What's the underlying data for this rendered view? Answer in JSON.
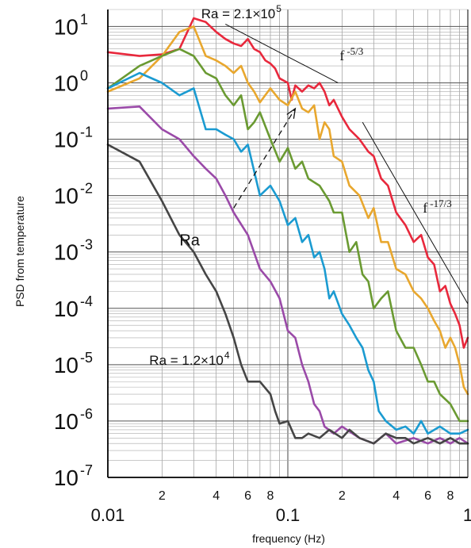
{
  "chart_data": {
    "type": "line",
    "xlabel": "frequency (Hz)",
    "ylabel": "PSD from temperature",
    "xscale": "log",
    "yscale": "log",
    "xlim": [
      0.01,
      1
    ],
    "ylim": [
      1e-07,
      20
    ],
    "grid": true,
    "x_major_ticks": [
      {
        "value": 0.01,
        "label": "0.01"
      },
      {
        "value": 0.1,
        "label": "0.1"
      },
      {
        "value": 1,
        "label": "1"
      }
    ],
    "x_minor_ticks": [
      {
        "value": 0.02,
        "label": "2"
      },
      {
        "value": 0.04,
        "label": "4"
      },
      {
        "value": 0.06,
        "label": "6"
      },
      {
        "value": 0.08,
        "label": "8"
      },
      {
        "value": 0.2,
        "label": "2"
      },
      {
        "value": 0.4,
        "label": "4"
      },
      {
        "value": 0.6,
        "label": "6"
      },
      {
        "value": 0.8,
        "label": "8"
      }
    ],
    "y_ticks": [
      {
        "value": 10,
        "base": "10",
        "exp": "1"
      },
      {
        "value": 1,
        "base": "10",
        "exp": "0"
      },
      {
        "value": 0.1,
        "base": "10",
        "exp": "-1"
      },
      {
        "value": 0.01,
        "base": "10",
        "exp": "-2"
      },
      {
        "value": 0.001,
        "base": "10",
        "exp": "-3"
      },
      {
        "value": 0.0001,
        "base": "10",
        "exp": "-4"
      },
      {
        "value": 1e-05,
        "base": "10",
        "exp": "-5"
      },
      {
        "value": 1e-06,
        "base": "10",
        "exp": "-6"
      },
      {
        "value": 1e-07,
        "base": "10",
        "exp": "-7"
      }
    ],
    "series": [
      {
        "color": "#e8283c",
        "points": [
          [
            0.01,
            3.5
          ],
          [
            0.015,
            3.0
          ],
          [
            0.02,
            3.2
          ],
          [
            0.025,
            4.0
          ],
          [
            0.03,
            14
          ],
          [
            0.035,
            12
          ],
          [
            0.04,
            8
          ],
          [
            0.045,
            6
          ],
          [
            0.05,
            5
          ],
          [
            0.055,
            4.5
          ],
          [
            0.06,
            6
          ],
          [
            0.065,
            4
          ],
          [
            0.07,
            3.5
          ],
          [
            0.075,
            2.5
          ],
          [
            0.08,
            2.2
          ],
          [
            0.085,
            1.8
          ],
          [
            0.09,
            1.2
          ],
          [
            0.1,
            1.0
          ],
          [
            0.105,
            0.5
          ],
          [
            0.11,
            0.9
          ],
          [
            0.12,
            0.7
          ],
          [
            0.13,
            0.9
          ],
          [
            0.14,
            0.8
          ],
          [
            0.15,
            1.0
          ],
          [
            0.16,
            0.7
          ],
          [
            0.17,
            0.4
          ],
          [
            0.18,
            0.5
          ],
          [
            0.2,
            0.25
          ],
          [
            0.22,
            0.15
          ],
          [
            0.25,
            0.1
          ],
          [
            0.28,
            0.06
          ],
          [
            0.3,
            0.05
          ],
          [
            0.33,
            0.02
          ],
          [
            0.36,
            0.015
          ],
          [
            0.4,
            0.005
          ],
          [
            0.45,
            0.003
          ],
          [
            0.5,
            0.0015
          ],
          [
            0.55,
            0.002
          ],
          [
            0.6,
            0.0008
          ],
          [
            0.65,
            0.0006
          ],
          [
            0.7,
            0.0002
          ],
          [
            0.75,
            0.00025
          ],
          [
            0.8,
            0.00012
          ],
          [
            0.85,
            8e-05
          ],
          [
            0.9,
            5e-05
          ],
          [
            0.95,
            2e-05
          ],
          [
            1.0,
            3e-05
          ]
        ]
      },
      {
        "color": "#e8a72e",
        "points": [
          [
            0.01,
            0.7
          ],
          [
            0.015,
            1.2
          ],
          [
            0.02,
            3.0
          ],
          [
            0.025,
            8
          ],
          [
            0.03,
            10
          ],
          [
            0.035,
            3.0
          ],
          [
            0.04,
            2.5
          ],
          [
            0.045,
            2.0
          ],
          [
            0.05,
            1.5
          ],
          [
            0.055,
            2.0
          ],
          [
            0.06,
            1.0
          ],
          [
            0.065,
            0.7
          ],
          [
            0.07,
            0.45
          ],
          [
            0.08,
            0.8
          ],
          [
            0.09,
            0.5
          ],
          [
            0.1,
            0.4
          ],
          [
            0.11,
            0.7
          ],
          [
            0.12,
            0.35
          ],
          [
            0.13,
            0.3
          ],
          [
            0.14,
            0.4
          ],
          [
            0.15,
            0.1
          ],
          [
            0.16,
            0.2
          ],
          [
            0.17,
            0.15
          ],
          [
            0.18,
            0.05
          ],
          [
            0.2,
            0.04
          ],
          [
            0.22,
            0.015
          ],
          [
            0.25,
            0.01
          ],
          [
            0.28,
            0.004
          ],
          [
            0.3,
            0.006
          ],
          [
            0.33,
            0.0015
          ],
          [
            0.36,
            0.0015
          ],
          [
            0.4,
            0.0005
          ],
          [
            0.45,
            0.0004
          ],
          [
            0.5,
            0.0002
          ],
          [
            0.55,
            0.00015
          ],
          [
            0.6,
            0.0001
          ],
          [
            0.65,
            6e-05
          ],
          [
            0.7,
            4e-05
          ],
          [
            0.75,
            2e-05
          ],
          [
            0.8,
            3e-05
          ],
          [
            0.85,
            2e-05
          ],
          [
            0.9,
            1e-05
          ],
          [
            0.95,
            4e-06
          ],
          [
            1.0,
            3e-06
          ]
        ]
      },
      {
        "color": "#6a9a32",
        "points": [
          [
            0.01,
            0.8
          ],
          [
            0.015,
            2.0
          ],
          [
            0.02,
            3.0
          ],
          [
            0.025,
            4.0
          ],
          [
            0.03,
            3.0
          ],
          [
            0.035,
            1.5
          ],
          [
            0.04,
            1.2
          ],
          [
            0.045,
            0.6
          ],
          [
            0.05,
            0.4
          ],
          [
            0.055,
            0.6
          ],
          [
            0.06,
            0.15
          ],
          [
            0.065,
            0.2
          ],
          [
            0.07,
            0.3
          ],
          [
            0.08,
            0.1
          ],
          [
            0.09,
            0.04
          ],
          [
            0.1,
            0.07
          ],
          [
            0.11,
            0.03
          ],
          [
            0.12,
            0.04
          ],
          [
            0.13,
            0.02
          ],
          [
            0.15,
            0.015
          ],
          [
            0.17,
            0.008
          ],
          [
            0.18,
            0.005
          ],
          [
            0.2,
            0.005
          ],
          [
            0.22,
            0.001
          ],
          [
            0.24,
            0.0015
          ],
          [
            0.26,
            0.0004
          ],
          [
            0.28,
            0.0003
          ],
          [
            0.3,
            0.0001
          ],
          [
            0.33,
            0.00015
          ],
          [
            0.36,
            0.0002
          ],
          [
            0.4,
            4e-05
          ],
          [
            0.45,
            2e-05
          ],
          [
            0.5,
            2e-05
          ],
          [
            0.55,
            1e-05
          ],
          [
            0.6,
            5e-06
          ],
          [
            0.65,
            5e-06
          ],
          [
            0.7,
            3e-06
          ],
          [
            0.8,
            2e-06
          ],
          [
            0.9,
            1e-06
          ],
          [
            1.0,
            1e-06
          ]
        ]
      },
      {
        "color": "#1b9bd1",
        "points": [
          [
            0.01,
            0.8
          ],
          [
            0.015,
            1.5
          ],
          [
            0.02,
            1.0
          ],
          [
            0.025,
            0.6
          ],
          [
            0.03,
            0.8
          ],
          [
            0.035,
            0.15
          ],
          [
            0.04,
            0.15
          ],
          [
            0.045,
            0.12
          ],
          [
            0.05,
            0.1
          ],
          [
            0.055,
            0.06
          ],
          [
            0.06,
            0.08
          ],
          [
            0.07,
            0.01
          ],
          [
            0.08,
            0.015
          ],
          [
            0.09,
            0.008
          ],
          [
            0.1,
            0.003
          ],
          [
            0.11,
            0.004
          ],
          [
            0.12,
            0.0015
          ],
          [
            0.13,
            0.002
          ],
          [
            0.14,
            0.0008
          ],
          [
            0.15,
            0.001
          ],
          [
            0.16,
            0.0005
          ],
          [
            0.17,
            0.00015
          ],
          [
            0.18,
            0.0002
          ],
          [
            0.2,
            8e-05
          ],
          [
            0.22,
            5e-05
          ],
          [
            0.24,
            3e-05
          ],
          [
            0.26,
            2e-05
          ],
          [
            0.28,
            8e-06
          ],
          [
            0.3,
            5e-06
          ],
          [
            0.32,
            1.5e-06
          ],
          [
            0.35,
            1e-06
          ],
          [
            0.4,
            7e-07
          ],
          [
            0.45,
            8e-07
          ],
          [
            0.5,
            6e-07
          ],
          [
            0.55,
            1e-06
          ],
          [
            0.6,
            6e-07
          ],
          [
            0.7,
            8e-07
          ],
          [
            0.8,
            6e-07
          ],
          [
            0.9,
            6e-07
          ],
          [
            1.0,
            7e-07
          ]
        ]
      },
      {
        "color": "#9a4aa8",
        "points": [
          [
            0.01,
            0.35
          ],
          [
            0.015,
            0.38
          ],
          [
            0.02,
            0.15
          ],
          [
            0.025,
            0.1
          ],
          [
            0.03,
            0.05
          ],
          [
            0.035,
            0.03
          ],
          [
            0.04,
            0.02
          ],
          [
            0.045,
            0.01
          ],
          [
            0.05,
            0.005
          ],
          [
            0.06,
            0.002
          ],
          [
            0.07,
            0.0005
          ],
          [
            0.08,
            0.0003
          ],
          [
            0.09,
            0.00015
          ],
          [
            0.1,
            4e-05
          ],
          [
            0.11,
            3e-05
          ],
          [
            0.12,
            1e-05
          ],
          [
            0.13,
            5e-06
          ],
          [
            0.14,
            2e-06
          ],
          [
            0.15,
            1.5e-06
          ],
          [
            0.16,
            8e-07
          ],
          [
            0.18,
            6e-07
          ],
          [
            0.2,
            8e-07
          ],
          [
            0.25,
            5e-07
          ],
          [
            0.3,
            4e-07
          ],
          [
            0.35,
            6e-07
          ],
          [
            0.4,
            4e-07
          ],
          [
            0.5,
            5e-07
          ],
          [
            0.6,
            4e-07
          ],
          [
            0.7,
            5e-07
          ],
          [
            0.8,
            4e-07
          ],
          [
            0.9,
            5e-07
          ],
          [
            1.0,
            4e-07
          ]
        ]
      },
      {
        "color": "#454545",
        "points": [
          [
            0.01,
            0.08
          ],
          [
            0.015,
            0.04
          ],
          [
            0.02,
            0.008
          ],
          [
            0.025,
            0.002
          ],
          [
            0.03,
            0.001
          ],
          [
            0.035,
            0.0004
          ],
          [
            0.04,
            0.0002
          ],
          [
            0.045,
            8e-05
          ],
          [
            0.05,
            3e-05
          ],
          [
            0.055,
            1e-05
          ],
          [
            0.06,
            5e-06
          ],
          [
            0.07,
            5e-06
          ],
          [
            0.08,
            3e-06
          ],
          [
            0.085,
            1.5e-06
          ],
          [
            0.09,
            9e-07
          ],
          [
            0.1,
            1e-06
          ],
          [
            0.11,
            5e-07
          ],
          [
            0.12,
            5e-07
          ],
          [
            0.13,
            6e-07
          ],
          [
            0.15,
            5e-07
          ],
          [
            0.17,
            7e-07
          ],
          [
            0.2,
            5e-07
          ],
          [
            0.22,
            7e-07
          ],
          [
            0.25,
            5e-07
          ],
          [
            0.3,
            4e-07
          ],
          [
            0.35,
            6e-07
          ],
          [
            0.4,
            5e-07
          ],
          [
            0.45,
            5e-07
          ],
          [
            0.5,
            4e-07
          ],
          [
            0.6,
            5e-07
          ],
          [
            0.7,
            4e-07
          ],
          [
            0.8,
            5e-07
          ],
          [
            0.9,
            4e-07
          ],
          [
            1.0,
            4e-07
          ]
        ]
      }
    ],
    "slope_lines": [
      {
        "label_base": "f",
        "label_exp": "-5/3",
        "from": [
          0.045,
          11
        ],
        "to": [
          0.19,
          1.0
        ],
        "label_at": [
          0.2,
          2.5
        ]
      },
      {
        "label_base": "f",
        "label_exp": "-17/3",
        "from": [
          0.26,
          0.2
        ],
        "to": [
          1.0,
          0.00012
        ],
        "label_at": [
          0.58,
          0.005
        ]
      }
    ],
    "arrow": {
      "from": [
        0.05,
        0.006
      ],
      "to": [
        0.11,
        0.35
      ],
      "label": "Ra",
      "label_at": [
        0.025,
        0.0013
      ]
    },
    "annotations": [
      {
        "text": "Ra = 2.1×10",
        "sup": "5",
        "at": [
          0.033,
          14
        ]
      },
      {
        "text": "Ra = 1.2×10",
        "sup": "4",
        "at": [
          0.017,
          1e-05
        ]
      }
    ]
  }
}
